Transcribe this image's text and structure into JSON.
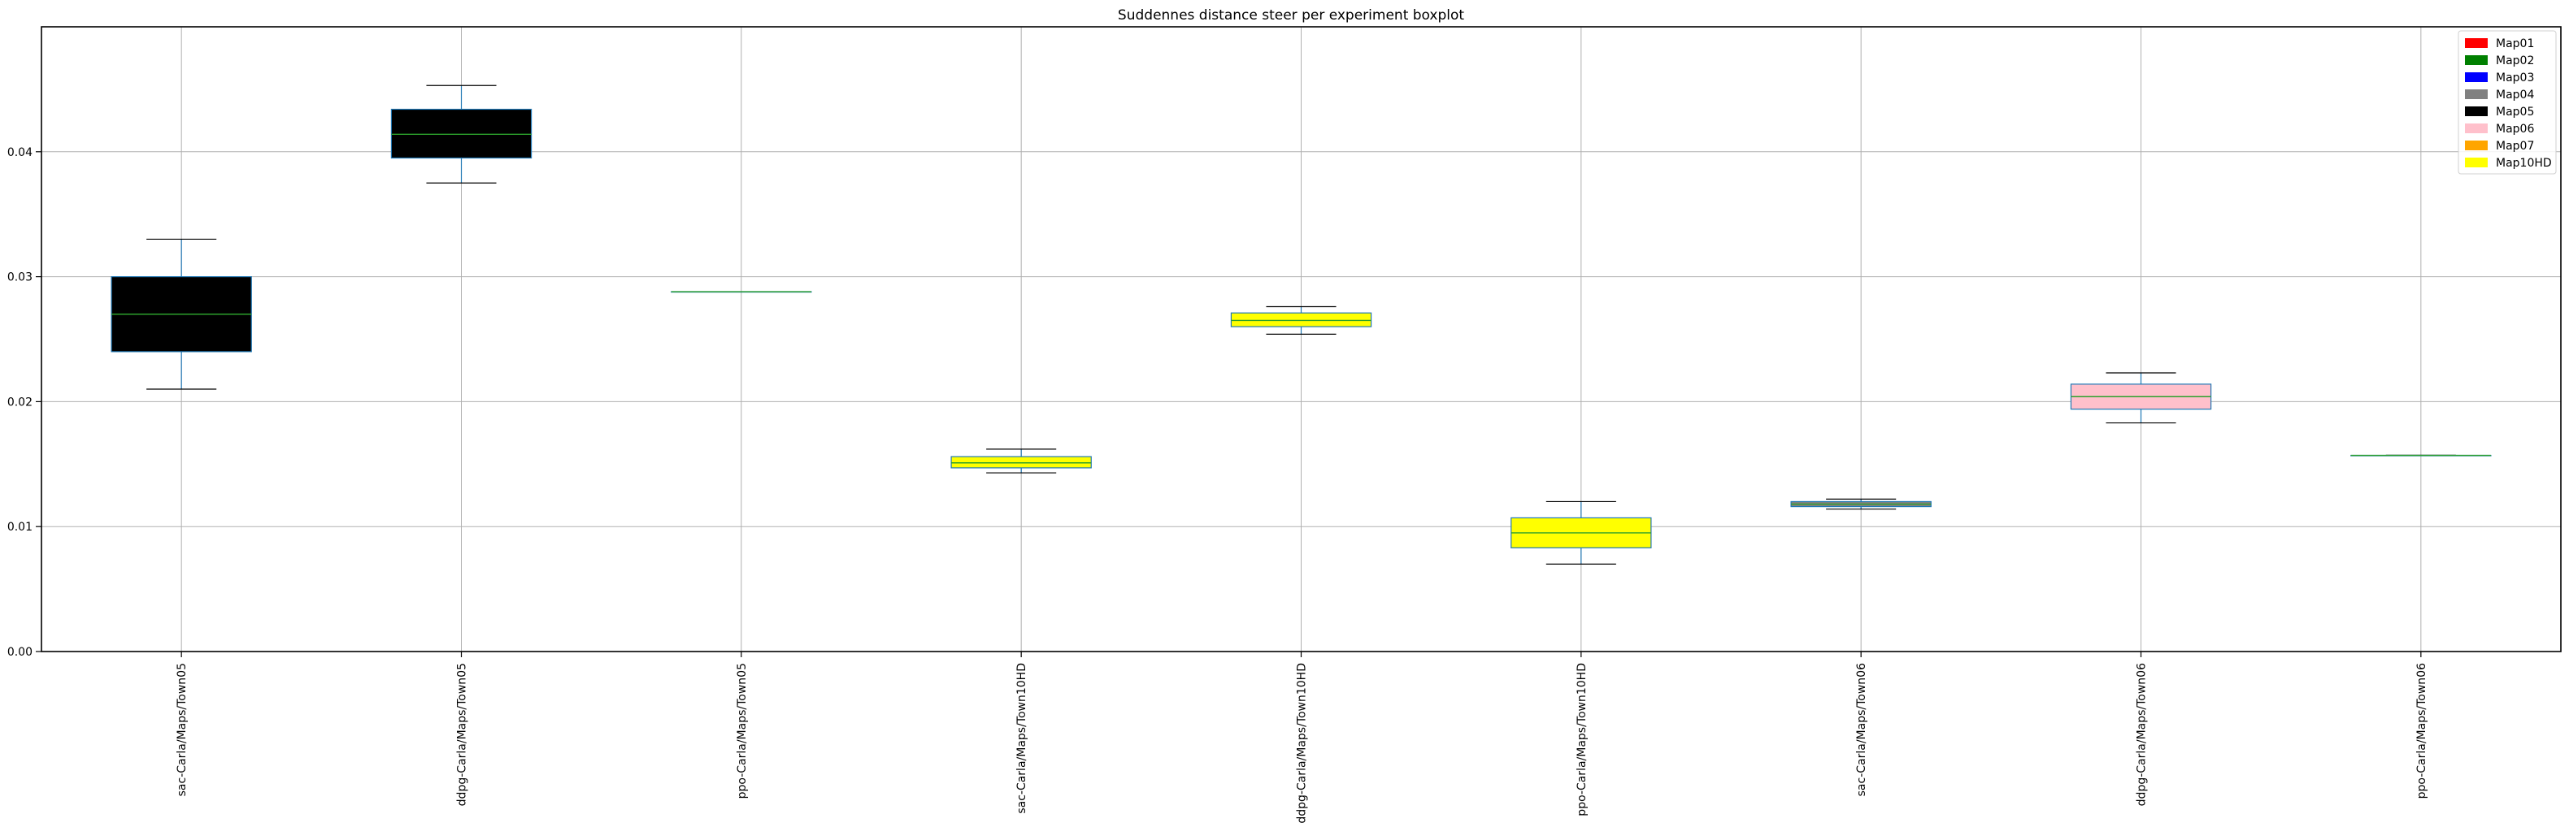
{
  "chart_data": {
    "type": "boxplot",
    "title": "Suddennes distance steer per experiment boxplot",
    "xlabel": "",
    "ylabel": "",
    "ylim": [
      0,
      0.05
    ],
    "yticks": [
      0.0,
      0.01,
      0.02,
      0.03,
      0.04
    ],
    "ytick_labels": [
      "0.00",
      "0.01",
      "0.02",
      "0.03",
      "0.04"
    ],
    "grid": true,
    "legend_position": "top-right",
    "legend": [
      {
        "label": "Map01",
        "color": "#ff0000"
      },
      {
        "label": "Map02",
        "color": "#008000"
      },
      {
        "label": "Map03",
        "color": "#0000ff"
      },
      {
        "label": "Map04",
        "color": "#808080"
      },
      {
        "label": "Map05",
        "color": "#000000"
      },
      {
        "label": "Map06",
        "color": "#ffc0cb"
      },
      {
        "label": "Map07",
        "color": "#ffa500"
      },
      {
        "label": "Map10HD",
        "color": "#ffff00"
      }
    ],
    "categories": [
      "sac-Carla/Maps/Town05",
      "ddpg-Carla/Maps/Town05",
      "ppo-Carla/Maps/Town05",
      "sac-Carla/Maps/Town10HD",
      "ddpg-Carla/Maps/Town10HD",
      "ppo-Carla/Maps/Town10HD",
      "sac-Carla/Maps/Town06",
      "ddpg-Carla/Maps/Town06",
      "ppo-Carla/Maps/Town06"
    ],
    "boxes": [
      {
        "whislo": 0.021,
        "q1": 0.024,
        "med": 0.027,
        "q3": 0.03,
        "whishi": 0.033,
        "color": "#000000"
      },
      {
        "whislo": 0.0375,
        "q1": 0.0395,
        "med": 0.0414,
        "q3": 0.0434,
        "whishi": 0.0453,
        "color": "#000000"
      },
      {
        "whislo": 0.0288,
        "q1": 0.0288,
        "med": 0.0288,
        "q3": 0.0288,
        "whishi": 0.0288,
        "color": "#000000"
      },
      {
        "whislo": 0.0143,
        "q1": 0.0147,
        "med": 0.0151,
        "q3": 0.0156,
        "whishi": 0.0162,
        "color": "#ffff00"
      },
      {
        "whislo": 0.0254,
        "q1": 0.026,
        "med": 0.0265,
        "q3": 0.0271,
        "whishi": 0.0276,
        "color": "#ffff00"
      },
      {
        "whislo": 0.007,
        "q1": 0.0083,
        "med": 0.0095,
        "q3": 0.0107,
        "whishi": 0.012,
        "color": "#ffff00"
      },
      {
        "whislo": 0.0114,
        "q1": 0.0116,
        "med": 0.0118,
        "q3": 0.012,
        "whishi": 0.0122,
        "color": "#808080"
      },
      {
        "whislo": 0.0183,
        "q1": 0.0194,
        "med": 0.0204,
        "q3": 0.0214,
        "whishi": 0.0223,
        "color": "#ffc0cb"
      },
      {
        "whislo": 0.0157,
        "q1": 0.0157,
        "med": 0.0157,
        "q3": 0.0157,
        "whishi": 0.0157,
        "color": "#ffc0cb"
      }
    ]
  }
}
